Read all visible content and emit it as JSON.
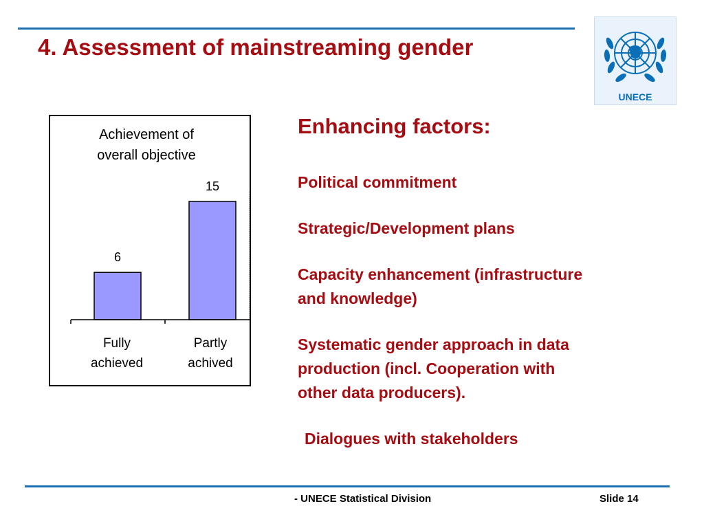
{
  "slide": {
    "title": "4. Assessment of mainstreaming gender",
    "logo_text": "UNECE"
  },
  "colors": {
    "title_red": "#a50d12",
    "rule_blue": "#1a6fb5",
    "bar_fill": "#9999ff"
  },
  "chart_data": {
    "type": "bar",
    "title_lines": [
      "Achievement of",
      "overall objective"
    ],
    "categories": [
      [
        "Fully",
        "achieved"
      ],
      [
        "Partly",
        "achived"
      ]
    ],
    "values": [
      6,
      15
    ],
    "data_labels": [
      "6",
      "15"
    ],
    "grid": false,
    "legend": "none"
  },
  "factors": {
    "heading": "Enhancing factors:",
    "items": [
      [
        "Political commitment"
      ],
      [
        "Strategic/Development plans"
      ],
      [
        "Capacity enhancement (infrastructure",
        "and knowledge)"
      ],
      [
        "Systematic gender approach in data",
        "production (incl. Cooperation with",
        "other data producers)."
      ],
      [
        "Dialogues with stakeholders"
      ]
    ]
  },
  "footer": {
    "division": "- UNECE Statistical Division",
    "slide_number": "Slide 14"
  }
}
